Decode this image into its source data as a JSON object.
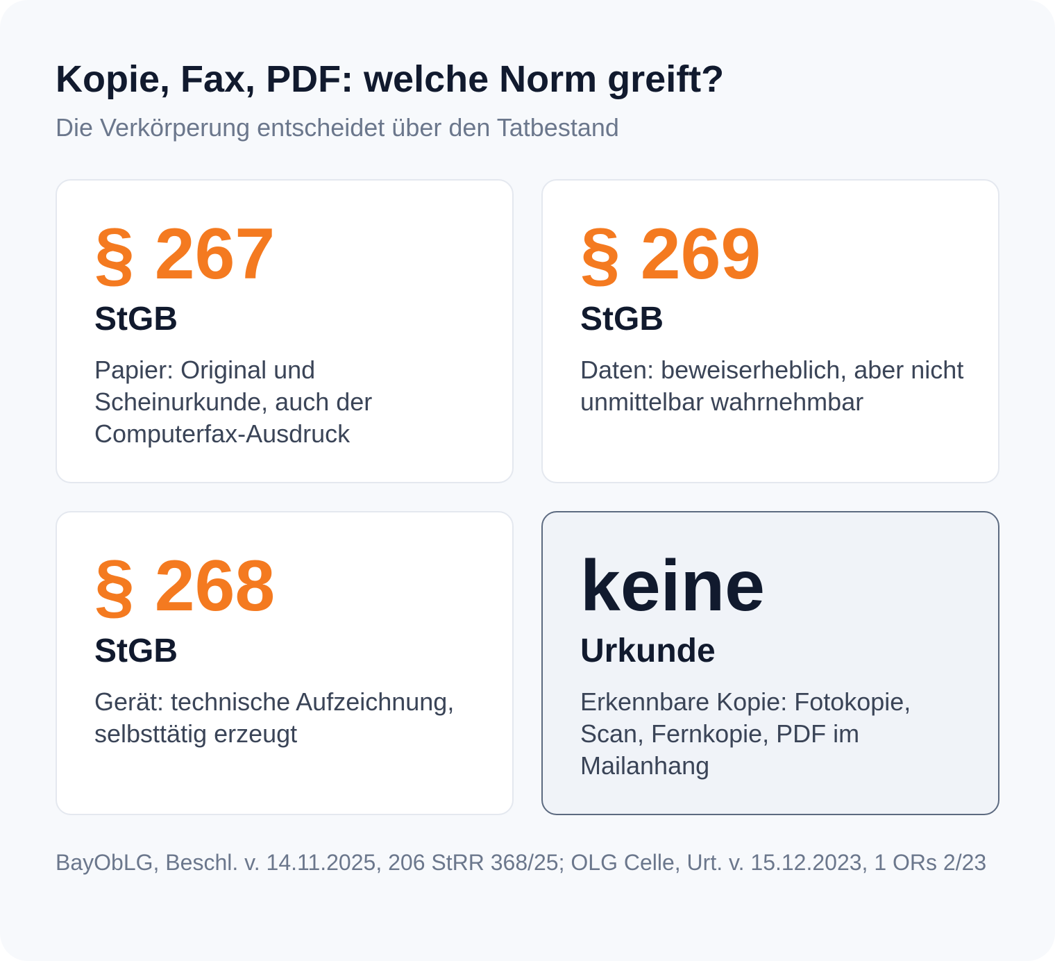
{
  "header": {
    "title": "Kopie, Fax, PDF: welche Norm greift?",
    "subtitle": "Die Verkörperung entscheidet über den Tatbestand"
  },
  "cards": [
    {
      "number": "§ 267",
      "law": "StGB",
      "description": "Papier: Original und Scheinurkunde, auch der Computerfax-Ausdruck"
    },
    {
      "number": "§ 269",
      "law": "StGB",
      "description": "Daten: beweiserheblich, aber nicht unmittelbar wahrnehmbar"
    },
    {
      "number": "§ 268",
      "law": "StGB",
      "description": "Gerät: technische Aufzeichnung, selbsttätig erzeugt"
    },
    {
      "number": "keine",
      "law": "Urkunde",
      "description": "Erkennbare Kopie: Fotokopie, Scan, Fernkopie, PDF im Mailanhang"
    }
  ],
  "footer": {
    "source": "BayObLG, Beschl. v. 14.11.2025, 206 StRR 368/25; OLG Celle, Urt. v. 15.12.2023, 1 ORs 2/23"
  },
  "colors": {
    "accent": "#f47a20",
    "heading": "#111a2e",
    "muted": "#6b778c",
    "highlight_card_bg": "#f0f3f8",
    "highlight_card_border": "#5c6a80"
  }
}
